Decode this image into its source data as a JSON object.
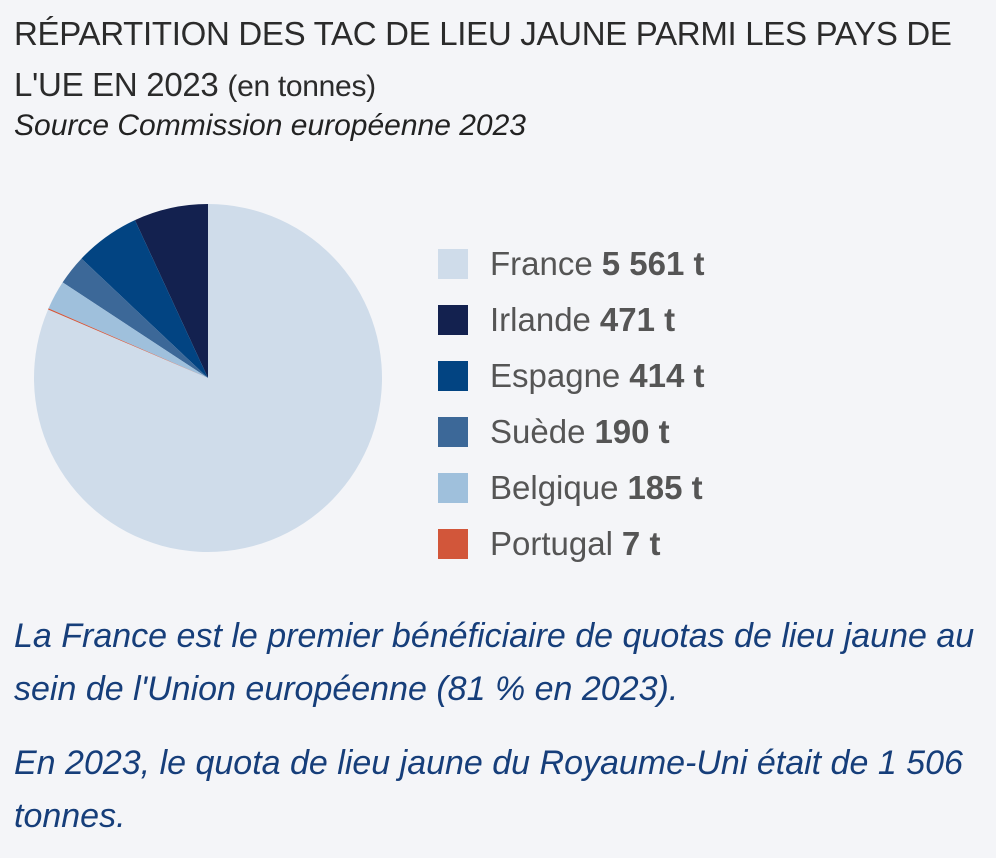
{
  "title_main": "RÉPARTITION DES TAC DE LIEU JAUNE PARMI LES PAYS DE L'UE EN 2023",
  "title_unit": "(en tonnes)",
  "source": "Source Commission européenne 2023",
  "chart_data": {
    "type": "pie",
    "title": "RÉPARTITION DES TAC DE LIEU JAUNE PARMI LES PAYS DE L'UE EN 2023 (en tonnes)",
    "unit": "t",
    "legend_position": "right",
    "slices": [
      {
        "label": "France",
        "value": 5561,
        "display": "5 561 t",
        "color": "#cfdcea"
      },
      {
        "label": "Irlande",
        "value": 471,
        "display": "471 t",
        "color": "#13214f"
      },
      {
        "label": "Espagne",
        "value": 414,
        "display": "414 t",
        "color": "#024482"
      },
      {
        "label": "Suède",
        "value": 190,
        "display": "190 t",
        "color": "#3c6898"
      },
      {
        "label": "Belgique",
        "value": 185,
        "display": "185 t",
        "color": "#9fc0dc"
      },
      {
        "label": "Portugal",
        "value": 7,
        "display": "7 t",
        "color": "#d2563a"
      }
    ]
  },
  "notes": [
    "La France est le premier bénéficiaire de quotas de lieu jaune au sein de l'Union européenne (81 % en 2023).",
    "En 2023, le quota de lieu jaune du Royaume-Uni était de 1 506 tonnes."
  ]
}
